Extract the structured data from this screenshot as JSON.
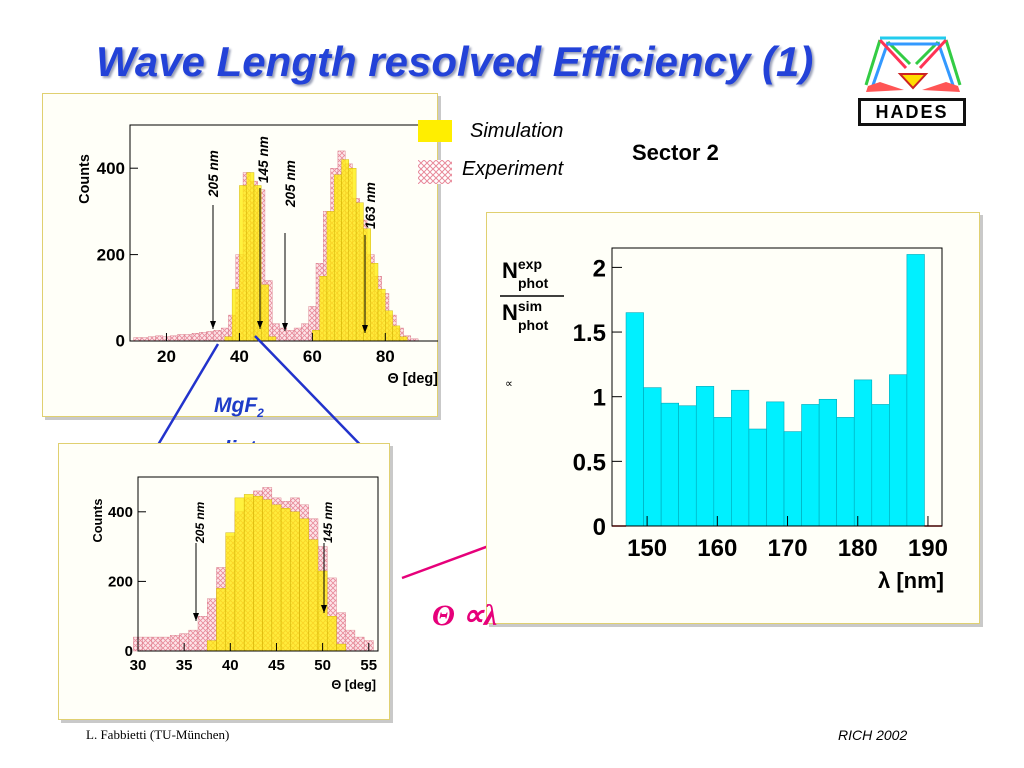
{
  "slide": {
    "title": "Wave Length resolved Efficiency (1)",
    "legend_sim": "Simulation",
    "legend_exp": "Experiment",
    "sector": "Sector 2",
    "mgf_label": "MgF",
    "mgf_sub": "2",
    "radiator": "radiator",
    "prop_text": "Θ ∝λ",
    "prop_symbol": "∝",
    "footer_left": "L. Fabbietti  (TU-München)",
    "footer_right": "RICH 2002",
    "logo": "HADES"
  },
  "colors": {
    "title": "#2342d8",
    "simulation": "#ffee00",
    "experiment": "#f1a7b4",
    "ratio_fill": "#00f0ff",
    "accent_pink": "#e6007a",
    "accent_blue": "#2233cc"
  },
  "chart_data": [
    {
      "type": "bar",
      "ylabel": "Counts",
      "xlabel": "Θ [deg]",
      "xticks": [
        20,
        40,
        60,
        80
      ],
      "yticks": [
        0,
        200,
        400
      ],
      "xlim": [
        10,
        95
      ],
      "ylim": [
        0,
        500
      ],
      "series": [
        {
          "name": "Simulation",
          "x": [
            37,
            39,
            41,
            43,
            45,
            47,
            49,
            61,
            63,
            65,
            67,
            69,
            71,
            73,
            75,
            77,
            79,
            81,
            83,
            85,
            87
          ],
          "values": [
            10,
            120,
            360,
            390,
            360,
            130,
            10,
            25,
            150,
            300,
            385,
            420,
            400,
            320,
            260,
            180,
            120,
            70,
            35,
            10,
            0
          ]
        },
        {
          "name": "Experiment",
          "x": [
            12,
            14,
            16,
            18,
            20,
            22,
            24,
            26,
            28,
            30,
            32,
            34,
            36,
            38,
            40,
            42,
            44,
            46,
            48,
            50,
            52,
            54,
            56,
            58,
            60,
            62,
            64,
            66,
            68,
            70,
            72,
            74,
            76,
            78,
            80,
            82,
            84,
            86,
            88,
            90
          ],
          "values": [
            8,
            8,
            10,
            12,
            10,
            12,
            15,
            15,
            18,
            20,
            22,
            25,
            30,
            60,
            200,
            390,
            370,
            350,
            140,
            40,
            30,
            25,
            30,
            40,
            80,
            180,
            300,
            400,
            440,
            410,
            330,
            280,
            200,
            150,
            110,
            60,
            30,
            12,
            5,
            0
          ]
        }
      ],
      "annotations": [
        "205 nm",
        "145 nm",
        "205 nm",
        "163 nm"
      ]
    },
    {
      "type": "bar",
      "ylabel": "Counts",
      "xlabel": "Θ [deg]",
      "xticks": [
        30,
        35,
        40,
        45,
        50,
        55
      ],
      "yticks": [
        0,
        200,
        400
      ],
      "xlim": [
        30,
        56
      ],
      "ylim": [
        0,
        500
      ],
      "series": [
        {
          "name": "Simulation",
          "x": [
            38,
            39,
            40,
            41,
            42,
            43,
            44,
            45,
            46,
            47,
            48,
            49,
            50,
            51,
            52
          ],
          "values": [
            30,
            180,
            340,
            440,
            450,
            445,
            435,
            420,
            410,
            400,
            380,
            320,
            230,
            100,
            20
          ]
        },
        {
          "name": "Experiment",
          "x": [
            30,
            31,
            32,
            33,
            34,
            35,
            36,
            37,
            38,
            39,
            40,
            41,
            42,
            43,
            44,
            45,
            46,
            47,
            48,
            49,
            50,
            51,
            52,
            53,
            54,
            55
          ],
          "values": [
            40,
            40,
            40,
            40,
            45,
            50,
            60,
            100,
            150,
            240,
            330,
            400,
            440,
            460,
            470,
            440,
            430,
            440,
            420,
            380,
            300,
            210,
            110,
            60,
            40,
            30
          ]
        }
      ],
      "annotations": [
        "205 nm",
        "145 nm"
      ]
    },
    {
      "type": "bar",
      "title": "Sector 2",
      "xlabel": "λ [nm]",
      "ylabel_num": "N",
      "ylabel_num_sup": "exp",
      "ylabel_num_sub": "phot",
      "ylabel_den": "N",
      "ylabel_den_sup": "sim",
      "ylabel_den_sub": "phot",
      "xticks": [
        150,
        160,
        170,
        180,
        190
      ],
      "yticks": [
        0,
        0.5,
        1,
        1.5,
        2
      ],
      "ytick_labels": [
        "0",
        "0.5",
        "1",
        "1.5",
        "2"
      ],
      "xlim": [
        145,
        192
      ],
      "ylim": [
        0,
        2.15
      ],
      "bin_start": 147,
      "bin_width": 2.5,
      "values": [
        1.65,
        1.07,
        0.95,
        0.93,
        1.08,
        0.84,
        1.05,
        0.75,
        0.96,
        0.73,
        0.94,
        0.98,
        0.84,
        1.13,
        0.94,
        1.17,
        2.1
      ]
    }
  ]
}
